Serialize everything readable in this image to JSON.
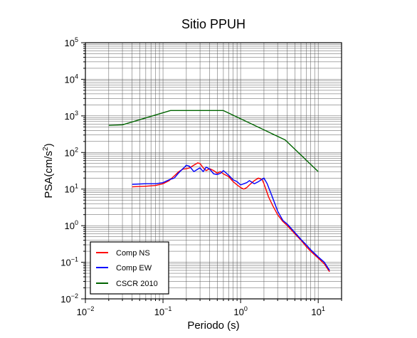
{
  "chart_data": {
    "type": "line",
    "title": "Sitio PPUH",
    "xlabel": "Periodo (s)",
    "ylabel": "PSA(cm/s²)",
    "ylabel_base": "PSA(cm/s",
    "ylabel_sup": "2",
    "ylabel_tail": ")",
    "xscale": "log",
    "yscale": "log",
    "xlim": [
      0.01,
      20
    ],
    "ylim": [
      0.01,
      100000
    ],
    "x_ticks": [
      {
        "value": 0.01,
        "base": "10",
        "exp": "−2"
      },
      {
        "value": 0.1,
        "base": "10",
        "exp": "−1"
      },
      {
        "value": 1,
        "base": "10",
        "exp": "0"
      },
      {
        "value": 10,
        "base": "10",
        "exp": "1"
      }
    ],
    "y_ticks": [
      {
        "value": 0.01,
        "base": "10",
        "exp": "−2"
      },
      {
        "value": 0.1,
        "base": "10",
        "exp": "−1"
      },
      {
        "value": 1,
        "base": "10",
        "exp": "0"
      },
      {
        "value": 10,
        "base": "10",
        "exp": "1"
      },
      {
        "value": 100,
        "base": "10",
        "exp": "2"
      },
      {
        "value": 1000,
        "base": "10",
        "exp": "3"
      },
      {
        "value": 10000,
        "base": "10",
        "exp": "4"
      },
      {
        "value": 100000,
        "base": "10",
        "exp": "5"
      }
    ],
    "grid": true,
    "legend_position": "bottom-left",
    "series": [
      {
        "name": "Comp NS",
        "color": "#ff0000",
        "points": [
          [
            0.04,
            11.5
          ],
          [
            0.06,
            12
          ],
          [
            0.08,
            12.5
          ],
          [
            0.1,
            14
          ],
          [
            0.12,
            17
          ],
          [
            0.14,
            23
          ],
          [
            0.16,
            30
          ],
          [
            0.18,
            35
          ],
          [
            0.2,
            36
          ],
          [
            0.22,
            38
          ],
          [
            0.25,
            45
          ],
          [
            0.28,
            52
          ],
          [
            0.3,
            50
          ],
          [
            0.33,
            38
          ],
          [
            0.36,
            32
          ],
          [
            0.4,
            36
          ],
          [
            0.45,
            32
          ],
          [
            0.5,
            27
          ],
          [
            0.55,
            30
          ],
          [
            0.6,
            26
          ],
          [
            0.7,
            22
          ],
          [
            0.8,
            16
          ],
          [
            0.9,
            13
          ],
          [
            1.0,
            11
          ],
          [
            1.1,
            10
          ],
          [
            1.2,
            11
          ],
          [
            1.3,
            13
          ],
          [
            1.5,
            17
          ],
          [
            1.7,
            20
          ],
          [
            1.9,
            18
          ],
          [
            2.0,
            14
          ],
          [
            2.3,
            6
          ],
          [
            2.6,
            3.5
          ],
          [
            3.0,
            2
          ],
          [
            3.5,
            1.3
          ],
          [
            4,
            1
          ],
          [
            5,
            0.6
          ],
          [
            6,
            0.4
          ],
          [
            7,
            0.27
          ],
          [
            8,
            0.2
          ],
          [
            10,
            0.13
          ],
          [
            12,
            0.09
          ],
          [
            14,
            0.055
          ]
        ]
      },
      {
        "name": "Comp EW",
        "color": "#0000ff",
        "points": [
          [
            0.04,
            13.5
          ],
          [
            0.06,
            14
          ],
          [
            0.08,
            14
          ],
          [
            0.1,
            15
          ],
          [
            0.12,
            18
          ],
          [
            0.14,
            20
          ],
          [
            0.16,
            28
          ],
          [
            0.18,
            36
          ],
          [
            0.19,
            40
          ],
          [
            0.2,
            45
          ],
          [
            0.22,
            42
          ],
          [
            0.25,
            30
          ],
          [
            0.28,
            35
          ],
          [
            0.3,
            38
          ],
          [
            0.33,
            30
          ],
          [
            0.36,
            40
          ],
          [
            0.4,
            35
          ],
          [
            0.45,
            26
          ],
          [
            0.5,
            25
          ],
          [
            0.55,
            27
          ],
          [
            0.6,
            32
          ],
          [
            0.7,
            24
          ],
          [
            0.8,
            18
          ],
          [
            0.9,
            16
          ],
          [
            1.0,
            13
          ],
          [
            1.1,
            14
          ],
          [
            1.2,
            15
          ],
          [
            1.3,
            17
          ],
          [
            1.5,
            14
          ],
          [
            1.7,
            16
          ],
          [
            2.0,
            20
          ],
          [
            2.2,
            14
          ],
          [
            2.5,
            7
          ],
          [
            3.0,
            2.5
          ],
          [
            3.5,
            1.4
          ],
          [
            4,
            1.1
          ],
          [
            5,
            0.65
          ],
          [
            6,
            0.42
          ],
          [
            7,
            0.3
          ],
          [
            8,
            0.22
          ],
          [
            10,
            0.14
          ],
          [
            12,
            0.1
          ],
          [
            14,
            0.06
          ]
        ]
      },
      {
        "name": "CSCR 2010",
        "color": "#006400",
        "points": [
          [
            0.02,
            550
          ],
          [
            0.03,
            570
          ],
          [
            0.125,
            1400
          ],
          [
            0.6,
            1400
          ],
          [
            3.75,
            220
          ],
          [
            10,
            30
          ]
        ]
      }
    ]
  }
}
